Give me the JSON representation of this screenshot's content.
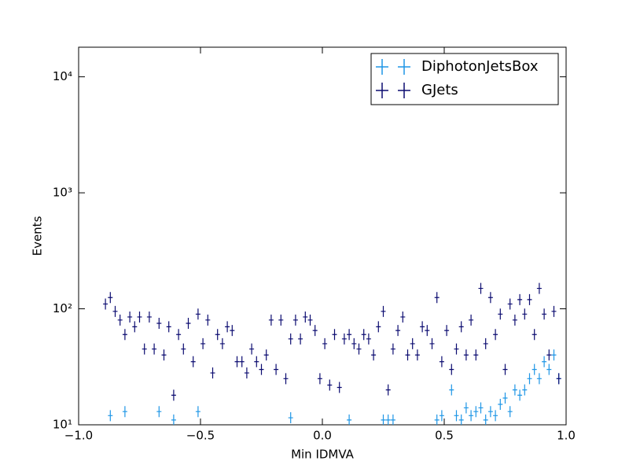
{
  "chart_data": {
    "type": "errorbar",
    "x_label": "Min IDMVA",
    "y_label": "Events",
    "xlim": [
      -1,
      1
    ],
    "ylim": [
      10,
      18000
    ],
    "log_y": true,
    "legend": "upper right",
    "xticks": [
      {
        "value": -1,
        "label": "−1.0"
      },
      {
        "value": -0.5,
        "label": "−0.5"
      },
      {
        "value": 0,
        "label": "0.0"
      },
      {
        "value": 0.5,
        "label": "0.5"
      },
      {
        "value": 1,
        "label": "1.0"
      }
    ],
    "yticks": [
      {
        "value": 10,
        "label": "10¹"
      },
      {
        "value": 100,
        "label": "10²"
      },
      {
        "value": 1000,
        "label": "10³"
      },
      {
        "value": 10000,
        "label": "10⁴"
      }
    ],
    "series": [
      {
        "name": "DiphotonJetsBox",
        "color": "#1e96e6",
        "x": [
          -0.87,
          -0.81,
          -0.67,
          -0.61,
          -0.51,
          -0.13,
          0.11,
          0.25,
          0.27,
          0.29,
          0.47,
          0.49,
          0.53,
          0.55,
          0.57,
          0.59,
          0.61,
          0.63,
          0.65,
          0.67,
          0.69,
          0.71,
          0.73,
          0.75,
          0.77,
          0.79,
          0.81,
          0.83,
          0.85,
          0.87,
          0.89,
          0.91,
          0.93,
          0.95,
          0.97
        ],
        "values": [
          12,
          13,
          13,
          11,
          13,
          11.5,
          11,
          11,
          11,
          11,
          11,
          12,
          20,
          12,
          11,
          14,
          12,
          13,
          14,
          11,
          13,
          12,
          15,
          17,
          13,
          20,
          18,
          20,
          25,
          30,
          25,
          35,
          30,
          40,
          25
        ]
      },
      {
        "name": "GJets",
        "color": "#0b0b70",
        "x": [
          -0.89,
          -0.87,
          -0.85,
          -0.83,
          -0.81,
          -0.79,
          -0.77,
          -0.75,
          -0.73,
          -0.71,
          -0.69,
          -0.67,
          -0.65,
          -0.63,
          -0.61,
          -0.59,
          -0.57,
          -0.55,
          -0.53,
          -0.51,
          -0.49,
          -0.47,
          -0.45,
          -0.43,
          -0.41,
          -0.39,
          -0.37,
          -0.35,
          -0.33,
          -0.31,
          -0.29,
          -0.27,
          -0.25,
          -0.23,
          -0.21,
          -0.19,
          -0.17,
          -0.15,
          -0.13,
          -0.11,
          -0.09,
          -0.07,
          -0.05,
          -0.03,
          -0.01,
          0.01,
          0.03,
          0.05,
          0.07,
          0.09,
          0.11,
          0.13,
          0.15,
          0.17,
          0.19,
          0.21,
          0.23,
          0.25,
          0.27,
          0.29,
          0.31,
          0.33,
          0.35,
          0.37,
          0.39,
          0.41,
          0.43,
          0.45,
          0.47,
          0.49,
          0.51,
          0.53,
          0.55,
          0.57,
          0.59,
          0.61,
          0.63,
          0.65,
          0.67,
          0.69,
          0.71,
          0.73,
          0.75,
          0.77,
          0.79,
          0.81,
          0.83,
          0.85,
          0.87,
          0.89,
          0.91,
          0.93,
          0.95,
          0.97
        ],
        "values": [
          110,
          125,
          95,
          80,
          60,
          85,
          70,
          85,
          45,
          85,
          45,
          75,
          40,
          70,
          18,
          60,
          45,
          75,
          35,
          90,
          50,
          80,
          28,
          60,
          50,
          70,
          65,
          35,
          35,
          28,
          45,
          35,
          30,
          40,
          80,
          30,
          80,
          25,
          55,
          80,
          55,
          85,
          80,
          65,
          25,
          50,
          22,
          60,
          21,
          55,
          60,
          50,
          45,
          60,
          55,
          40,
          70,
          95,
          20,
          45,
          65,
          85,
          40,
          50,
          40,
          70,
          65,
          50,
          125,
          35,
          65,
          30,
          45,
          70,
          40,
          80,
          40,
          150,
          50,
          125,
          60,
          90,
          30,
          110,
          80,
          120,
          90,
          120,
          60,
          150,
          90,
          40,
          95,
          25
        ]
      }
    ]
  }
}
